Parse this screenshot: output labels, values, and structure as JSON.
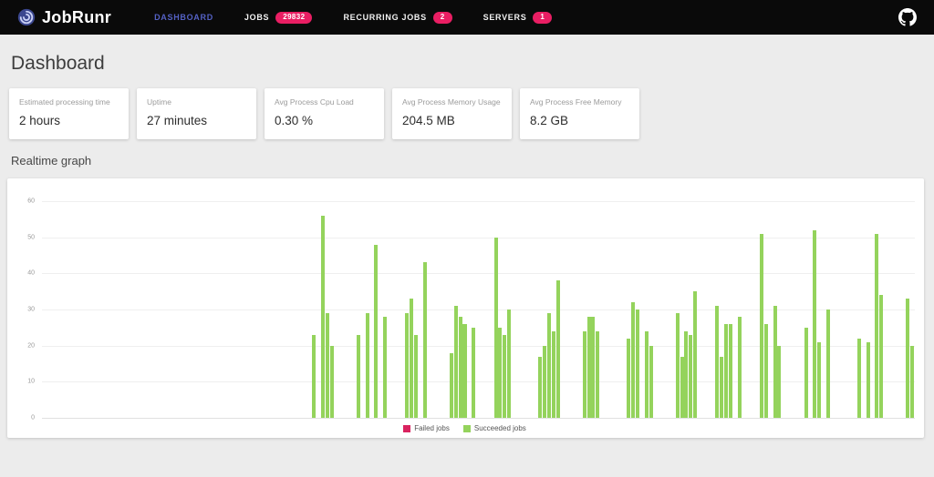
{
  "navbar": {
    "brand": "JobRunr",
    "items": [
      {
        "label": "DASHBOARD",
        "active": true
      },
      {
        "label": "JOBS",
        "badge": "29832"
      },
      {
        "label": "RECURRING JOBS",
        "badge": "2"
      },
      {
        "label": "SERVERS",
        "badge": "1"
      }
    ],
    "icons": {
      "brand_logo": "swirl-icon",
      "right": "github-octocat-icon"
    }
  },
  "page_title": "Dashboard",
  "stats": [
    {
      "label": "Estimated processing time",
      "value": "2 hours"
    },
    {
      "label": "Uptime",
      "value": "27 minutes"
    },
    {
      "label": "Avg Process Cpu Load",
      "value": "0.30 %"
    },
    {
      "label": "Avg Process Memory Usage",
      "value": "204.5 MB"
    },
    {
      "label": "Avg Process Free Memory",
      "value": "8.2 GB"
    }
  ],
  "section_title": "Realtime graph",
  "colors": {
    "navbar_bg": "#0a0a0a",
    "active_nav": "#5461c4",
    "badge": "#e91e63",
    "succeeded_green": "#94d35c",
    "failed_red": "#d9235f",
    "page_bg": "#ececec"
  },
  "chart_data": {
    "type": "bar",
    "title": "Realtime graph",
    "xlabel": "",
    "ylabel": "",
    "ylim": [
      0,
      60
    ],
    "yticks": [
      60,
      50,
      40,
      30,
      20,
      10,
      0
    ],
    "grid": true,
    "legend_position": "bottom-center",
    "total_slots": 197,
    "legend": [
      {
        "label": "Failed jobs",
        "color": "#d9235f"
      },
      {
        "label": "Succeeded jobs",
        "color": "#94d35c"
      }
    ],
    "series": [
      {
        "name": "Failed jobs",
        "color": "#d9235f",
        "bars": []
      },
      {
        "name": "Succeeded jobs",
        "color": "#94d35c",
        "bars": [
          {
            "slot": 61,
            "value": 23
          },
          {
            "slot": 63,
            "value": 56
          },
          {
            "slot": 64,
            "value": 29
          },
          {
            "slot": 65,
            "value": 20
          },
          {
            "slot": 71,
            "value": 23
          },
          {
            "slot": 73,
            "value": 29
          },
          {
            "slot": 75,
            "value": 48
          },
          {
            "slot": 77,
            "value": 28
          },
          {
            "slot": 82,
            "value": 29
          },
          {
            "slot": 83,
            "value": 33
          },
          {
            "slot": 84,
            "value": 23
          },
          {
            "slot": 86,
            "value": 43
          },
          {
            "slot": 92,
            "value": 18
          },
          {
            "slot": 93,
            "value": 31
          },
          {
            "slot": 94,
            "value": 28
          },
          {
            "slot": 95,
            "value": 26
          },
          {
            "slot": 97,
            "value": 25
          },
          {
            "slot": 102,
            "value": 50
          },
          {
            "slot": 103,
            "value": 25
          },
          {
            "slot": 104,
            "value": 23
          },
          {
            "slot": 105,
            "value": 30
          },
          {
            "slot": 112,
            "value": 17
          },
          {
            "slot": 113,
            "value": 20
          },
          {
            "slot": 114,
            "value": 29
          },
          {
            "slot": 115,
            "value": 24
          },
          {
            "slot": 116,
            "value": 38
          },
          {
            "slot": 122,
            "value": 24
          },
          {
            "slot": 123,
            "value": 28
          },
          {
            "slot": 124,
            "value": 28
          },
          {
            "slot": 125,
            "value": 24
          },
          {
            "slot": 132,
            "value": 22
          },
          {
            "slot": 133,
            "value": 32
          },
          {
            "slot": 134,
            "value": 30
          },
          {
            "slot": 136,
            "value": 24
          },
          {
            "slot": 137,
            "value": 20
          },
          {
            "slot": 143,
            "value": 29
          },
          {
            "slot": 144,
            "value": 17
          },
          {
            "slot": 145,
            "value": 24
          },
          {
            "slot": 146,
            "value": 23
          },
          {
            "slot": 147,
            "value": 35
          },
          {
            "slot": 152,
            "value": 31
          },
          {
            "slot": 153,
            "value": 17
          },
          {
            "slot": 154,
            "value": 26
          },
          {
            "slot": 155,
            "value": 26
          },
          {
            "slot": 157,
            "value": 28
          },
          {
            "slot": 162,
            "value": 51
          },
          {
            "slot": 163,
            "value": 26
          },
          {
            "slot": 165,
            "value": 31
          },
          {
            "slot": 166,
            "value": 20
          },
          {
            "slot": 172,
            "value": 25
          },
          {
            "slot": 174,
            "value": 52
          },
          {
            "slot": 175,
            "value": 21
          },
          {
            "slot": 177,
            "value": 30
          },
          {
            "slot": 184,
            "value": 22
          },
          {
            "slot": 186,
            "value": 21
          },
          {
            "slot": 188,
            "value": 51
          },
          {
            "slot": 189,
            "value": 34
          },
          {
            "slot": 195,
            "value": 33
          },
          {
            "slot": 196,
            "value": 20
          }
        ]
      }
    ]
  }
}
